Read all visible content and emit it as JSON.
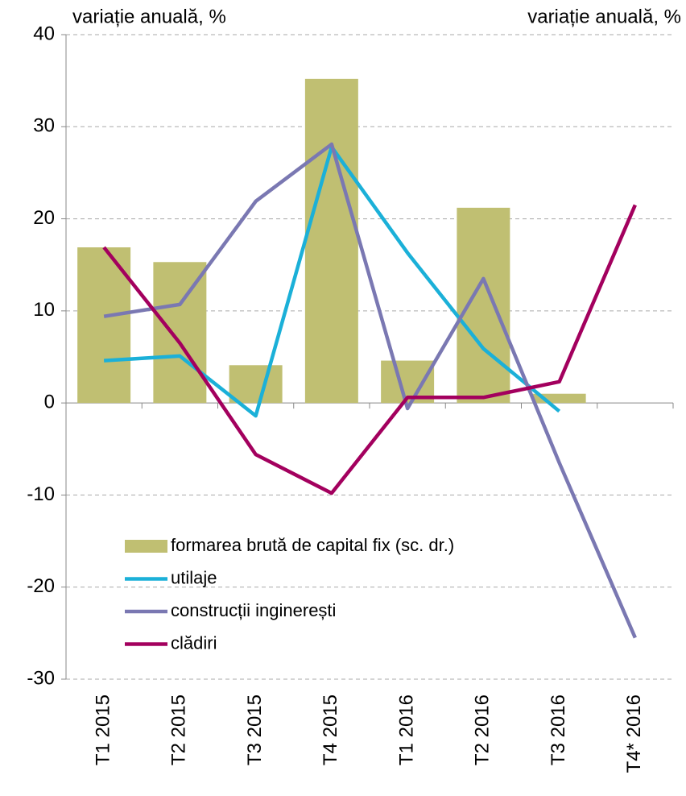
{
  "chart_data": {
    "type": "bar-line",
    "y_label": "variație anuală, %",
    "y2_label": "variație anuală, %",
    "categories": [
      "T1 2015",
      "T2 2015",
      "T3 2015",
      "T4 2015",
      "T1 2016",
      "T2 2016",
      "T3 2016",
      "T4* 2016"
    ],
    "series": [
      {
        "name": "formarea brută de capital fix (sc. dr.)",
        "type": "bar",
        "color": "#c0bf72",
        "values": [
          16.9,
          15.3,
          4.1,
          35.2,
          4.6,
          21.2,
          1.0,
          null
        ]
      },
      {
        "name": "utilaje",
        "type": "line",
        "color": "#1bb0d8",
        "values": [
          4.6,
          5.1,
          -1.4,
          27.8,
          16.3,
          5.9,
          -0.9,
          null
        ]
      },
      {
        "name": "construcții inginerești",
        "type": "line",
        "color": "#7a78b2",
        "values": [
          9.4,
          10.7,
          21.9,
          28.1,
          -0.6,
          13.5,
          -6.5,
          -25.5
        ]
      },
      {
        "name": "clădiri",
        "type": "line",
        "color": "#a3005e",
        "values": [
          16.9,
          6.5,
          -5.6,
          -9.8,
          0.6,
          0.6,
          2.3,
          21.5
        ]
      }
    ],
    "ylim": [
      -30,
      40
    ],
    "yticks": [
      -30,
      -20,
      -10,
      0,
      10,
      20,
      30,
      40
    ],
    "grid": true
  }
}
